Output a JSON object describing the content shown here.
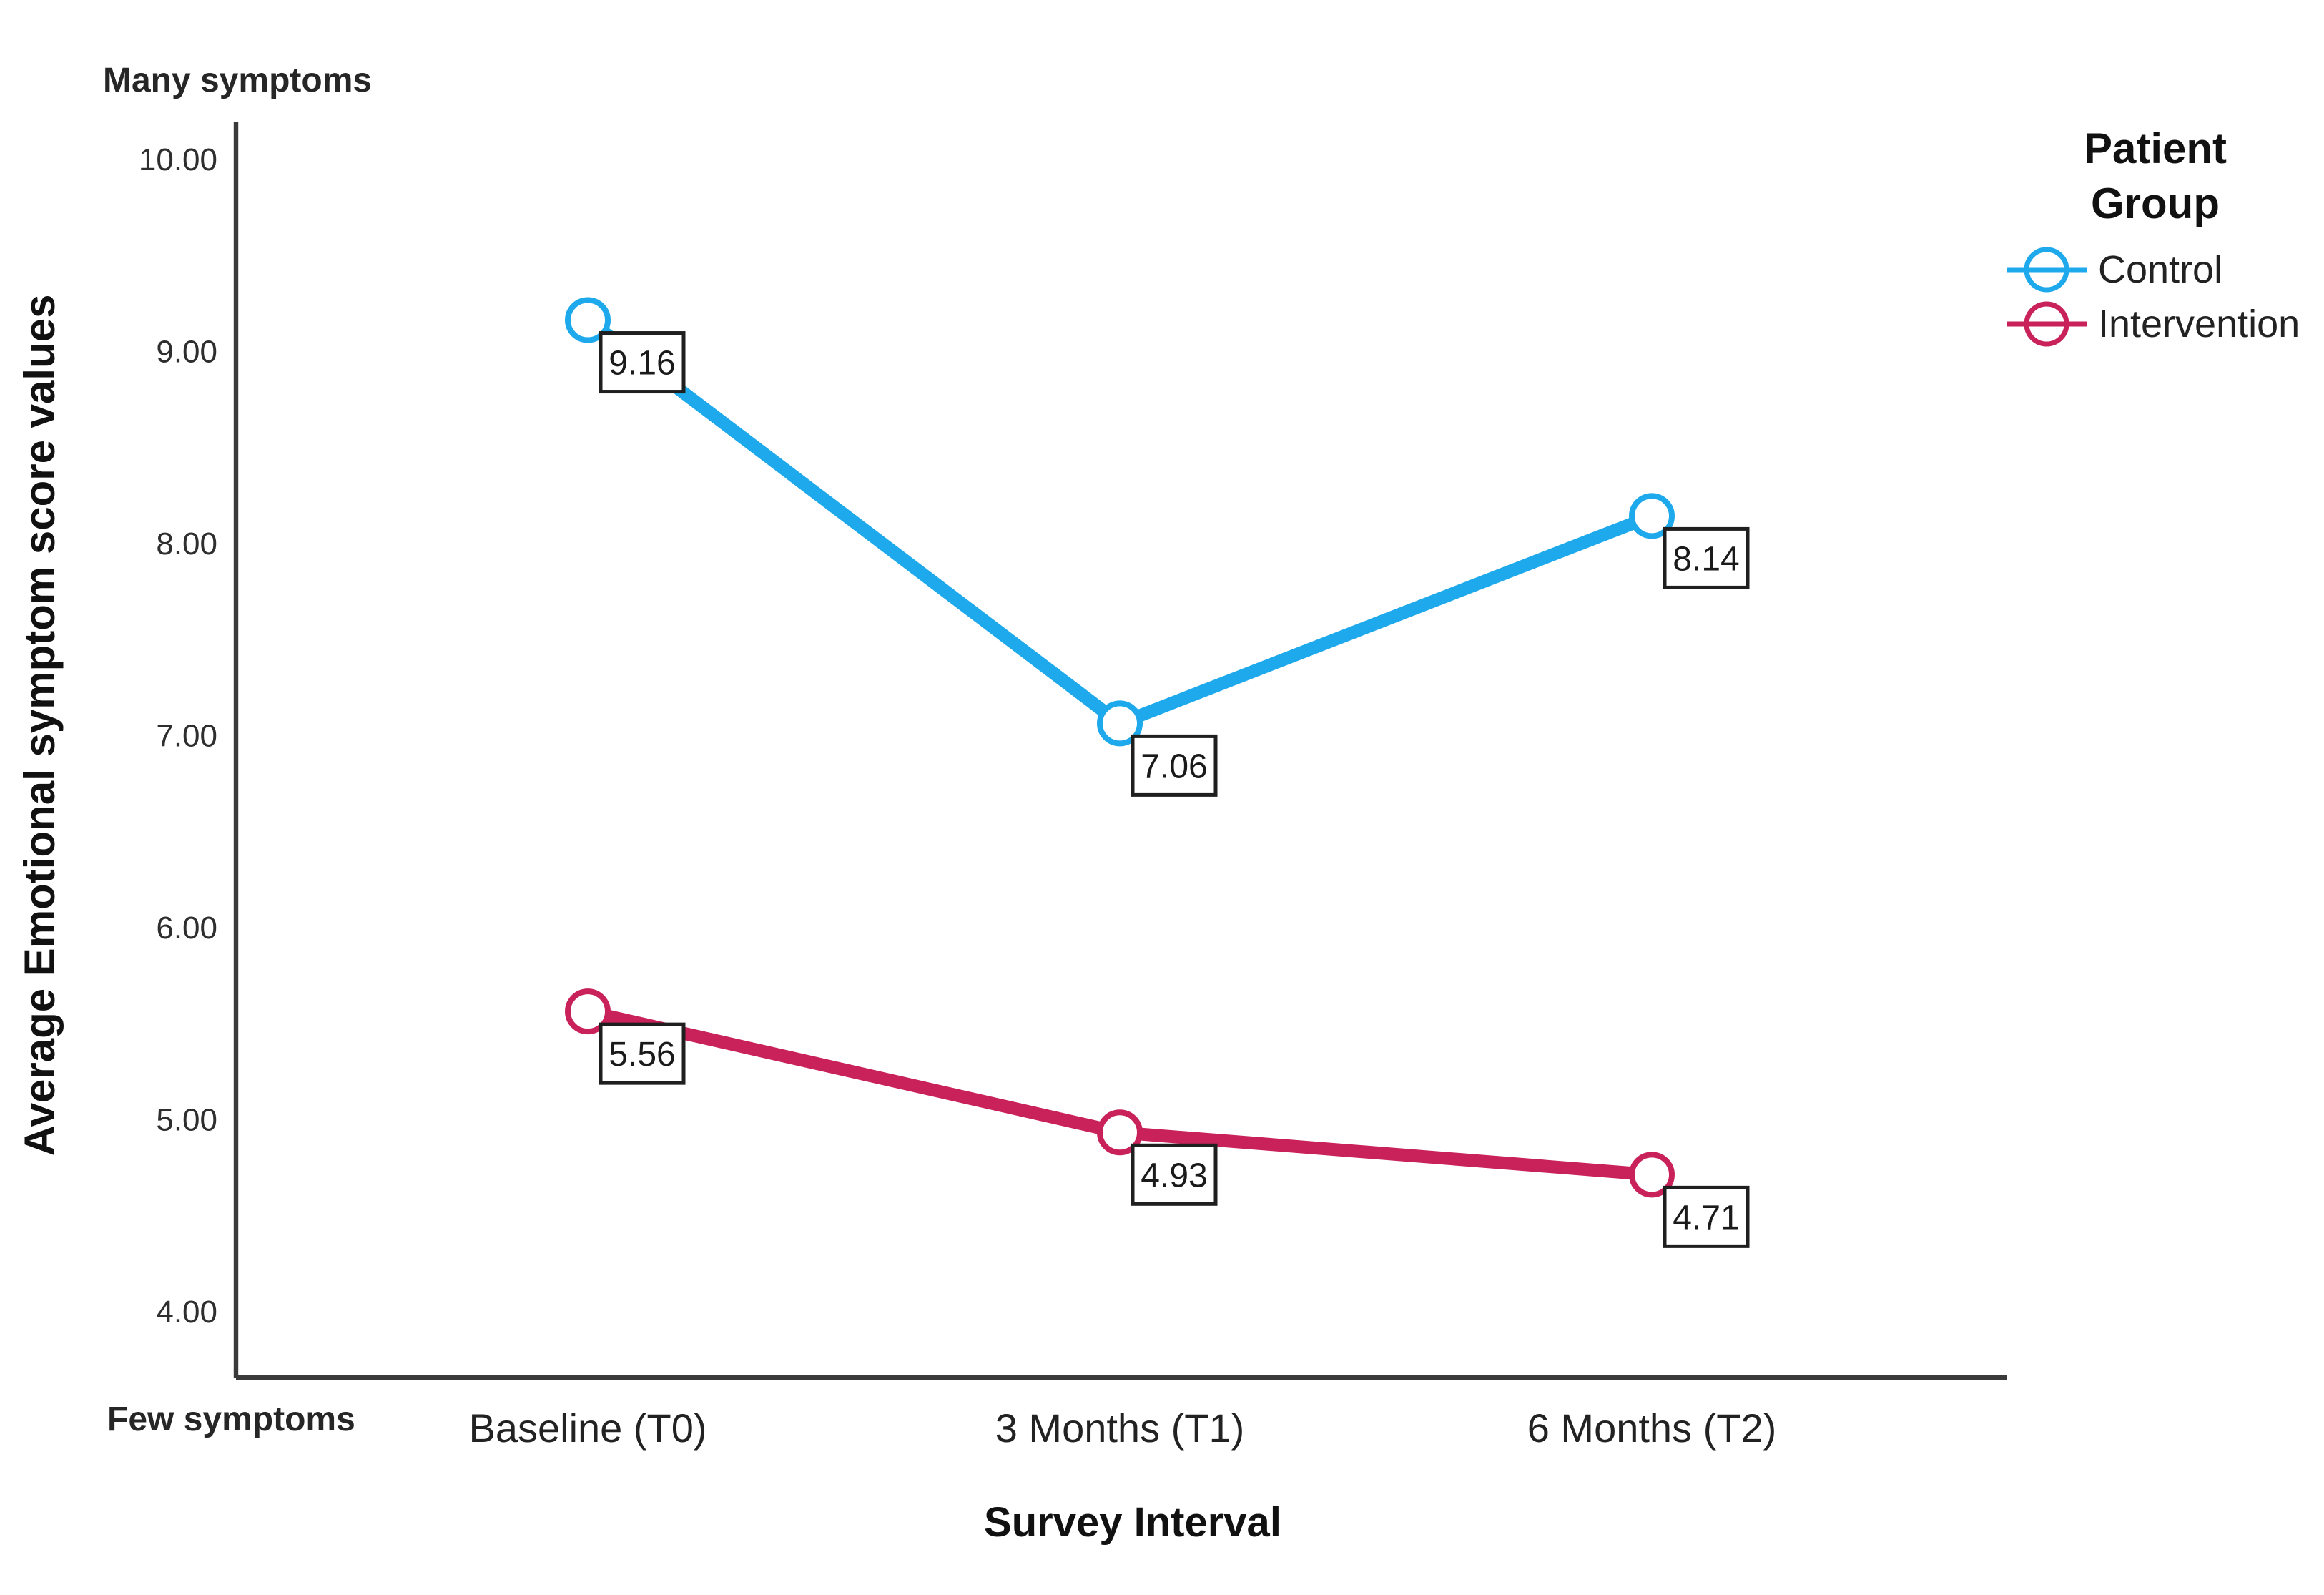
{
  "chart_data": {
    "type": "line",
    "title": "",
    "categories": [
      "Baseline (T0)",
      "3 Months (T1)",
      "6 Months (T2)"
    ],
    "series": [
      {
        "name": "Control",
        "color": "#1DA9EB",
        "values": [
          9.16,
          7.06,
          8.14
        ]
      },
      {
        "name": "Intervention",
        "color": "#C9215A",
        "values": [
          5.56,
          4.93,
          4.71
        ]
      }
    ],
    "xlabel": "Survey Interval",
    "ylabel": "Average Emotional symptom score values",
    "yticks": [
      "4.00",
      "5.00",
      "6.00",
      "7.00",
      "8.00",
      "9.00",
      "10.00"
    ],
    "ylim": [
      3.7,
      10.3
    ],
    "grid": false,
    "data_labels": true,
    "data_label_format": "0.00",
    "legend": {
      "title": "Patient Group",
      "position": "top-right",
      "items": [
        "Control",
        "Intervention"
      ]
    },
    "annotations": {
      "top_left": {
        "text": "Many symptoms",
        "color": "#CE2A28"
      },
      "bottom_left": {
        "text": "Few symptoms",
        "color": "#0BC3B2"
      }
    },
    "axis_color": "#3A3A3A"
  }
}
